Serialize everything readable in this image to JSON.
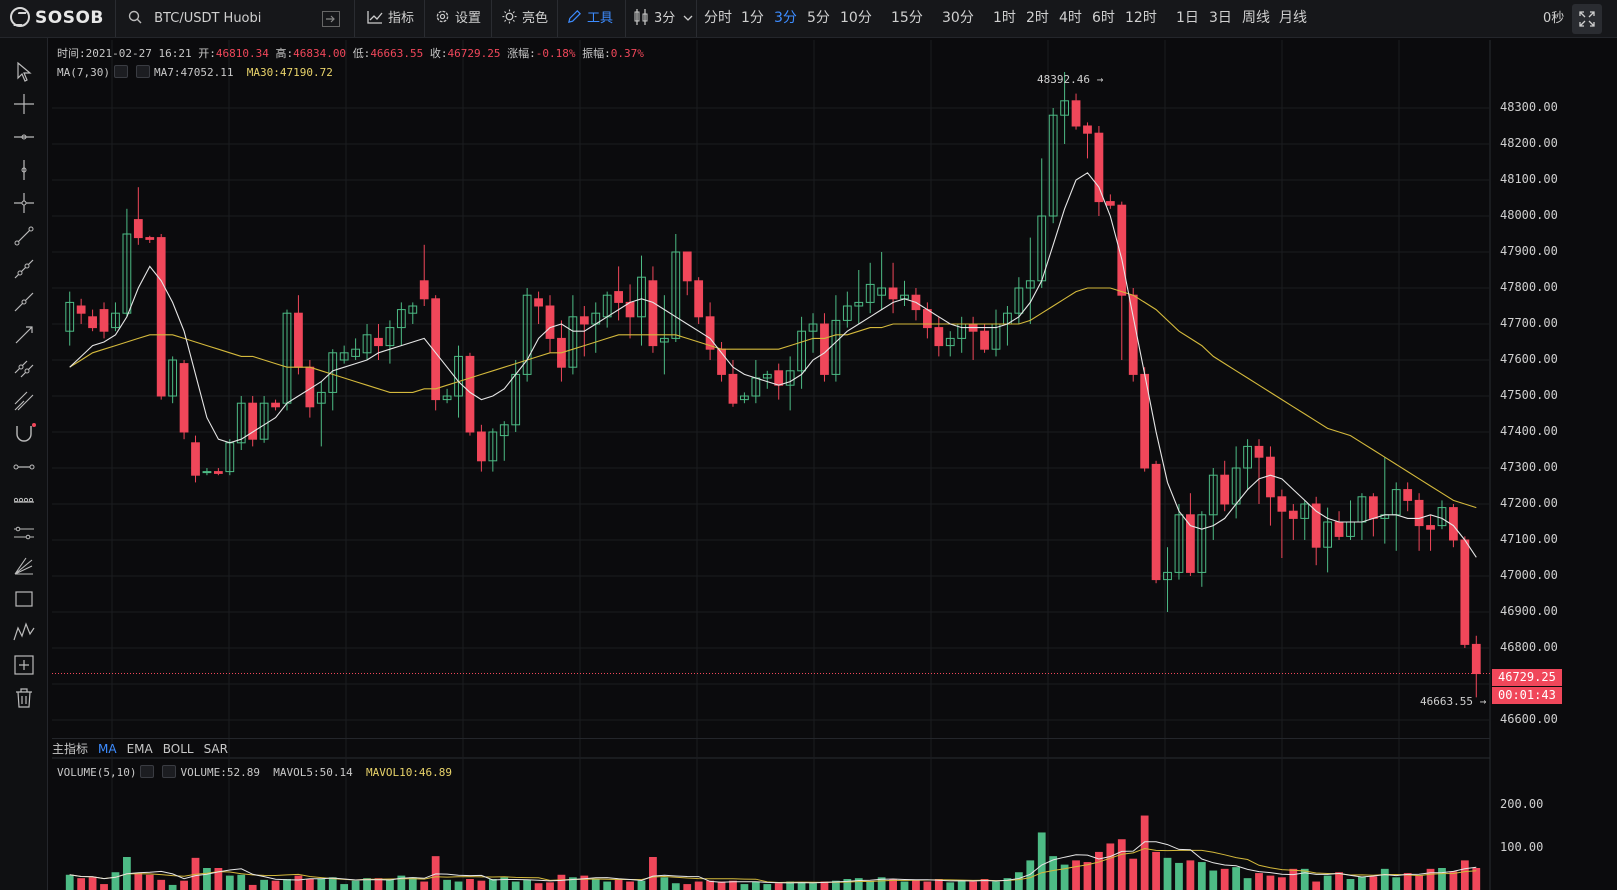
{
  "topbar": {
    "logo": "SOSOB",
    "search_text": "BTC/USDT  Huobi",
    "indicators_label": "指标",
    "settings_label": "设置",
    "theme_label": "亮色",
    "tools_label": "工具",
    "interval_dropdown": "3分",
    "periods": [
      "分时",
      "1分",
      "3分",
      "5分",
      "10分",
      "15分",
      "30分",
      "1时",
      "2时",
      "4时",
      "6时",
      "12时",
      "1日",
      "3日",
      "周线",
      "月线"
    ],
    "active_period": "3分",
    "countdown": "0秒"
  },
  "info_line": {
    "time_label": "时间:",
    "time": "2021-02-27 16:21",
    "open_label": "开:",
    "open": "46810.34",
    "high_label": "高:",
    "high": "46834.00",
    "low_label": "低:",
    "low": "46663.55",
    "close_label": "收:",
    "close": "46729.25",
    "change_label": "涨幅:",
    "change": "-0.18%",
    "amp_label": "振幅:",
    "amp": "0.37%"
  },
  "ma_line": {
    "name": "MA(7,30)",
    "ma7": "MA7:47052.11",
    "ma30": "MA30:47190.72"
  },
  "volume_line": {
    "name": "VOLUME(5,10)",
    "volume": "VOLUME:52.89",
    "mavol5": "MAVOL5:50.14",
    "mavol10": "MAVOL10:46.89"
  },
  "indicator_tabs": {
    "main_label": "主指标",
    "tabs": [
      "MA",
      "EMA",
      "BOLL",
      "SAR"
    ],
    "active": "MA"
  },
  "price_axis": [
    "48300.00",
    "48200.00",
    "48100.00",
    "48000.00",
    "47900.00",
    "47800.00",
    "47700.00",
    "47600.00",
    "47500.00",
    "47400.00",
    "47300.00",
    "47200.00",
    "47100.00",
    "47000.00",
    "46900.00",
    "46800.00",
    "46600.00"
  ],
  "volume_axis": [
    "200.00",
    "100.00"
  ],
  "current_price": "46729.25",
  "countdown_tag": "00:01:43",
  "high_marker": "48392.46",
  "low_marker": "46663.55",
  "colors": {
    "up": "#4dbb85",
    "down": "#f0475a",
    "ma7": "#e6e6e6",
    "ma30": "#d4b93c",
    "accent": "#3d8cff"
  },
  "chart_data": {
    "type": "candlestick",
    "candles": [
      [
        47680,
        47760,
        47640,
        47790
      ],
      [
        47750,
        47730,
        47700,
        47770
      ],
      [
        47720,
        47690,
        47680,
        47740
      ],
      [
        47740,
        47680,
        47660,
        47760
      ],
      [
        47690,
        47730,
        47680,
        47760
      ],
      [
        47730,
        47950,
        47720,
        48020
      ],
      [
        47990,
        47940,
        47920,
        48080
      ],
      [
        47940,
        47935,
        47925,
        47945
      ],
      [
        47940,
        47500,
        47490,
        47950
      ],
      [
        47500,
        47600,
        47480,
        47610
      ],
      [
        47590,
        47400,
        47380,
        47600
      ],
      [
        47370,
        47280,
        47260,
        47390
      ],
      [
        47290,
        47290,
        47280,
        47300
      ],
      [
        47290,
        47285,
        47280,
        47300
      ],
      [
        47290,
        47370,
        47280,
        47380
      ],
      [
        47370,
        47480,
        47350,
        47500
      ],
      [
        47480,
        47380,
        47360,
        47500
      ],
      [
        47380,
        47480,
        47370,
        47500
      ],
      [
        47480,
        47470,
        47460,
        47490
      ],
      [
        47480,
        47730,
        47460,
        47740
      ],
      [
        47730,
        47580,
        47560,
        47780
      ],
      [
        47580,
        47470,
        47440,
        47600
      ],
      [
        47480,
        47510,
        47360,
        47540
      ],
      [
        47510,
        47620,
        47460,
        47630
      ],
      [
        47600,
        47620,
        47590,
        47640
      ],
      [
        47610,
        47630,
        47600,
        47660
      ],
      [
        47620,
        47670,
        47600,
        47700
      ],
      [
        47660,
        47640,
        47600,
        47700
      ],
      [
        47640,
        47690,
        47590,
        47710
      ],
      [
        47690,
        47740,
        47640,
        47760
      ],
      [
        47730,
        47750,
        47700,
        47760
      ],
      [
        47820,
        47770,
        47750,
        47920
      ],
      [
        47770,
        47490,
        47460,
        47780
      ],
      [
        47490,
        47500,
        47480,
        47520
      ],
      [
        47500,
        47610,
        47440,
        47640
      ],
      [
        47610,
        47400,
        47390,
        47620
      ],
      [
        47400,
        47320,
        47290,
        47420
      ],
      [
        47320,
        47400,
        47290,
        47410
      ],
      [
        47390,
        47420,
        47320,
        47430
      ],
      [
        47420,
        47560,
        47400,
        47600
      ],
      [
        47560,
        47780,
        47540,
        47800
      ],
      [
        47770,
        47750,
        47700,
        47790
      ],
      [
        47750,
        47660,
        47620,
        47780
      ],
      [
        47660,
        47580,
        47540,
        47710
      ],
      [
        47580,
        47720,
        47560,
        47780
      ],
      [
        47720,
        47700,
        47610,
        47750
      ],
      [
        47700,
        47730,
        47620,
        47760
      ],
      [
        47720,
        47780,
        47690,
        47790
      ],
      [
        47790,
        47760,
        47710,
        47860
      ],
      [
        47760,
        47720,
        47660,
        47810
      ],
      [
        47720,
        47830,
        47640,
        47890
      ],
      [
        47820,
        47640,
        47620,
        47860
      ],
      [
        47650,
        47660,
        47560,
        47780
      ],
      [
        47660,
        47900,
        47650,
        47950
      ],
      [
        47900,
        47820,
        47780,
        47900
      ],
      [
        47820,
        47720,
        47700,
        47830
      ],
      [
        47720,
        47630,
        47600,
        47760
      ],
      [
        47630,
        47560,
        47540,
        47650
      ],
      [
        47560,
        47480,
        47470,
        47600
      ],
      [
        47490,
        47500,
        47480,
        47510
      ],
      [
        47500,
        47550,
        47480,
        47600
      ],
      [
        47550,
        47560,
        47520,
        47570
      ],
      [
        47570,
        47530,
        47490,
        47590
      ],
      [
        47530,
        47570,
        47460,
        47610
      ],
      [
        47570,
        47680,
        47520,
        47720
      ],
      [
        47680,
        47700,
        47620,
        47730
      ],
      [
        47700,
        47560,
        47540,
        47730
      ],
      [
        47560,
        47710,
        47540,
        47780
      ],
      [
        47710,
        47750,
        47690,
        47790
      ],
      [
        47750,
        47760,
        47700,
        47850
      ],
      [
        47760,
        47810,
        47730,
        47870
      ],
      [
        47780,
        47800,
        47740,
        47900
      ],
      [
        47800,
        47770,
        47730,
        47870
      ],
      [
        47770,
        47780,
        47750,
        47820
      ],
      [
        47780,
        47740,
        47710,
        47800
      ],
      [
        47740,
        47690,
        47660,
        47760
      ],
      [
        47690,
        47640,
        47610,
        47720
      ],
      [
        47640,
        47660,
        47610,
        47680
      ],
      [
        47660,
        47700,
        47620,
        47720
      ],
      [
        47700,
        47680,
        47600,
        47720
      ],
      [
        47680,
        47630,
        47620,
        47700
      ],
      [
        47630,
        47700,
        47610,
        47740
      ],
      [
        47700,
        47730,
        47640,
        47750
      ],
      [
        47730,
        47800,
        47700,
        47830
      ],
      [
        47800,
        47820,
        47700,
        47940
      ],
      [
        47820,
        48000,
        47800,
        48160
      ],
      [
        48000,
        48280,
        47980,
        48300
      ],
      [
        48280,
        48320,
        48200,
        48400
      ],
      [
        48320,
        48250,
        48240,
        48340
      ],
      [
        48250,
        48230,
        48160,
        48260
      ],
      [
        48230,
        48040,
        48000,
        48250
      ],
      [
        48040,
        48030,
        48020,
        48060
      ],
      [
        48030,
        47780,
        47600,
        48040
      ],
      [
        47780,
        47560,
        47540,
        47800
      ],
      [
        47560,
        47300,
        47290,
        47580
      ],
      [
        47310,
        46990,
        46980,
        47320
      ],
      [
        46990,
        47010,
        46900,
        47080
      ],
      [
        47010,
        47170,
        46990,
        47200
      ],
      [
        47170,
        47010,
        47000,
        47230
      ],
      [
        47010,
        47170,
        46970,
        47180
      ],
      [
        47170,
        47280,
        47100,
        47300
      ],
      [
        47280,
        47200,
        47180,
        47320
      ],
      [
        47200,
        47300,
        47160,
        47360
      ],
      [
        47300,
        47360,
        47240,
        47380
      ],
      [
        47360,
        47330,
        47200,
        47380
      ],
      [
        47330,
        47220,
        47140,
        47360
      ],
      [
        47220,
        47180,
        47050,
        47240
      ],
      [
        47180,
        47160,
        47100,
        47200
      ],
      [
        47160,
        47200,
        47100,
        47210
      ],
      [
        47200,
        47080,
        47030,
        47220
      ],
      [
        47080,
        47150,
        47010,
        47190
      ],
      [
        47150,
        47110,
        47100,
        47180
      ],
      [
        47110,
        47150,
        47100,
        47210
      ],
      [
        47150,
        47220,
        47100,
        47230
      ],
      [
        47220,
        47160,
        47110,
        47230
      ],
      [
        47160,
        47170,
        47090,
        47330
      ],
      [
        47170,
        47240,
        47070,
        47260
      ],
      [
        47240,
        47210,
        47180,
        47260
      ],
      [
        47210,
        47140,
        47070,
        47230
      ],
      [
        47140,
        47130,
        47070,
        47170
      ],
      [
        47140,
        47190,
        47130,
        47210
      ],
      [
        47190,
        47100,
        47080,
        47200
      ],
      [
        47100,
        46810,
        46800,
        47110
      ],
      [
        46810,
        46729,
        46663,
        46834
      ]
    ],
    "ma7": [
      47580,
      47610,
      47640,
      47650,
      47670,
      47720,
      47800,
      47860,
      47820,
      47760,
      47680,
      47560,
      47440,
      47380,
      47370,
      47380,
      47400,
      47420,
      47440,
      47480,
      47500,
      47520,
      47540,
      47570,
      47580,
      47590,
      47600,
      47620,
      47630,
      47640,
      47650,
      47660,
      47620,
      47580,
      47540,
      47510,
      47490,
      47500,
      47520,
      47560,
      47600,
      47660,
      47690,
      47700,
      47680,
      47680,
      47700,
      47720,
      47740,
      47760,
      47770,
      47760,
      47740,
      47720,
      47700,
      47680,
      47660,
      47620,
      47580,
      47560,
      47550,
      47540,
      47530,
      47540,
      47560,
      47600,
      47620,
      47650,
      47680,
      47700,
      47720,
      47740,
      47760,
      47770,
      47760,
      47740,
      47720,
      47700,
      47690,
      47690,
      47690,
      47690,
      47700,
      47720,
      47760,
      47820,
      47920,
      48020,
      48100,
      48120,
      48080,
      48000,
      47880,
      47720,
      47560,
      47400,
      47260,
      47180,
      47140,
      47130,
      47140,
      47160,
      47200,
      47240,
      47270,
      47280,
      47270,
      47240,
      47210,
      47180,
      47160,
      47150,
      47150,
      47150,
      47160,
      47170,
      47170,
      47160,
      47160,
      47170,
      47160,
      47140,
      47100,
      47052
    ],
    "ma30": [
      47580,
      47600,
      47620,
      47630,
      47640,
      47650,
      47660,
      47670,
      47670,
      47670,
      47660,
      47650,
      47640,
      47630,
      47620,
      47610,
      47610,
      47600,
      47590,
      47580,
      47580,
      47580,
      47570,
      47560,
      47550,
      47540,
      47530,
      47520,
      47510,
      47510,
      47510,
      47520,
      47520,
      47530,
      47540,
      47550,
      47560,
      47570,
      47580,
      47590,
      47600,
      47610,
      47620,
      47620,
      47630,
      47640,
      47650,
      47660,
      47670,
      47670,
      47670,
      47670,
      47670,
      47670,
      47660,
      47650,
      47640,
      47630,
      47630,
      47630,
      47630,
      47630,
      47630,
      47640,
      47650,
      47660,
      47660,
      47670,
      47670,
      47680,
      47690,
      47690,
      47700,
      47700,
      47700,
      47700,
      47700,
      47700,
      47700,
      47700,
      47700,
      47700,
      47700,
      47700,
      47710,
      47730,
      47750,
      47770,
      47790,
      47800,
      47800,
      47800,
      47790,
      47780,
      47760,
      47740,
      47710,
      47680,
      47660,
      47640,
      47610,
      47590,
      47570,
      47550,
      47530,
      47510,
      47490,
      47470,
      47450,
      47430,
      47410,
      47400,
      47390,
      47370,
      47350,
      47330,
      47310,
      47290,
      47270,
      47250,
      47230,
      47210,
      47200,
      47190
    ],
    "volume": [
      36,
      28,
      30,
      14,
      42,
      78,
      40,
      36,
      24,
      12,
      22,
      76,
      52,
      52,
      34,
      36,
      12,
      24,
      22,
      26,
      34,
      26,
      26,
      30,
      14,
      22,
      28,
      28,
      26,
      34,
      30,
      20,
      80,
      24,
      20,
      26,
      22,
      26,
      30,
      20,
      24,
      16,
      18,
      36,
      30,
      34,
      26,
      20,
      24,
      20,
      22,
      78,
      30,
      16,
      14,
      20,
      22,
      20,
      22,
      14,
      20,
      14,
      16,
      20,
      18,
      16,
      20,
      22,
      26,
      28,
      20,
      30,
      26,
      20,
      24,
      20,
      26,
      18,
      22,
      20,
      26,
      20,
      28,
      42,
      70,
      136,
      80,
      60,
      70,
      66,
      90,
      110,
      120,
      74,
      176,
      90,
      76,
      64,
      70,
      66,
      46,
      50,
      54,
      28,
      40,
      34,
      30,
      50,
      50,
      20,
      34,
      42,
      26,
      32,
      32,
      50,
      30,
      40,
      34,
      50,
      52,
      44,
      70,
      52
    ],
    "price_range": [
      46600,
      48400
    ],
    "volume_range": [
      0,
      260
    ]
  }
}
